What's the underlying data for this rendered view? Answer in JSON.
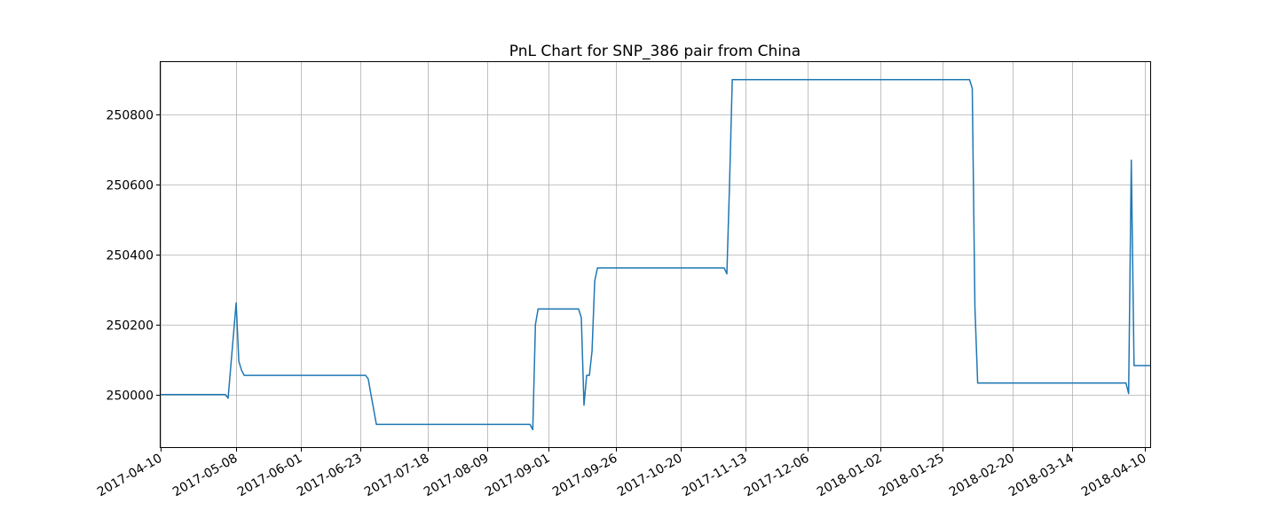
{
  "chart_data": {
    "type": "line",
    "title": "PnL Chart for SNP_386 pair from China",
    "xlabel": "",
    "ylabel": "",
    "x_range": [
      "2017-04-10",
      "2018-04-12"
    ],
    "ylim": [
      249850,
      250950
    ],
    "grid": true,
    "line_color": "#1f77b4",
    "x_ticks": [
      "2017-04-10",
      "2017-05-08",
      "2017-06-01",
      "2017-06-23",
      "2017-07-18",
      "2017-08-09",
      "2017-09-01",
      "2017-09-26",
      "2017-10-20",
      "2017-11-13",
      "2017-12-06",
      "2018-01-02",
      "2018-01-25",
      "2018-02-20",
      "2018-03-14",
      "2018-04-10"
    ],
    "y_ticks": [
      250000,
      250200,
      250400,
      250600,
      250800
    ],
    "series": [
      {
        "x": [
          "2017-04-10",
          "2017-05-04",
          "2017-05-05",
          "2017-05-08",
          "2017-05-09",
          "2017-05-10",
          "2017-05-11",
          "2017-05-12",
          "2017-06-25",
          "2017-06-26",
          "2017-06-27",
          "2017-06-29",
          "2017-08-25",
          "2017-08-26",
          "2017-08-27",
          "2017-08-28",
          "2017-09-12",
          "2017-09-13",
          "2017-09-14",
          "2017-09-15",
          "2017-09-16",
          "2017-09-17",
          "2017-09-18",
          "2017-09-19",
          "2017-09-20",
          "2017-11-05",
          "2017-11-06",
          "2017-11-07",
          "2017-11-08",
          "2017-11-09",
          "2018-02-04",
          "2018-02-05",
          "2018-02-06",
          "2018-02-07",
          "2018-04-03",
          "2018-04-04",
          "2018-04-05",
          "2018-04-06",
          "2018-04-07",
          "2018-04-12"
        ],
        "values": [
          250000,
          250000,
          249990,
          250262,
          250095,
          250070,
          250055,
          250055,
          250055,
          250045,
          250000,
          249915,
          249915,
          249900,
          250200,
          250245,
          250245,
          250220,
          249970,
          250055,
          250055,
          250125,
          250325,
          250362,
          250362,
          250362,
          250345,
          250600,
          250900,
          250900,
          250900,
          250875,
          250250,
          250033,
          250033,
          250003,
          250670,
          250083,
          250083,
          250083
        ]
      }
    ]
  }
}
